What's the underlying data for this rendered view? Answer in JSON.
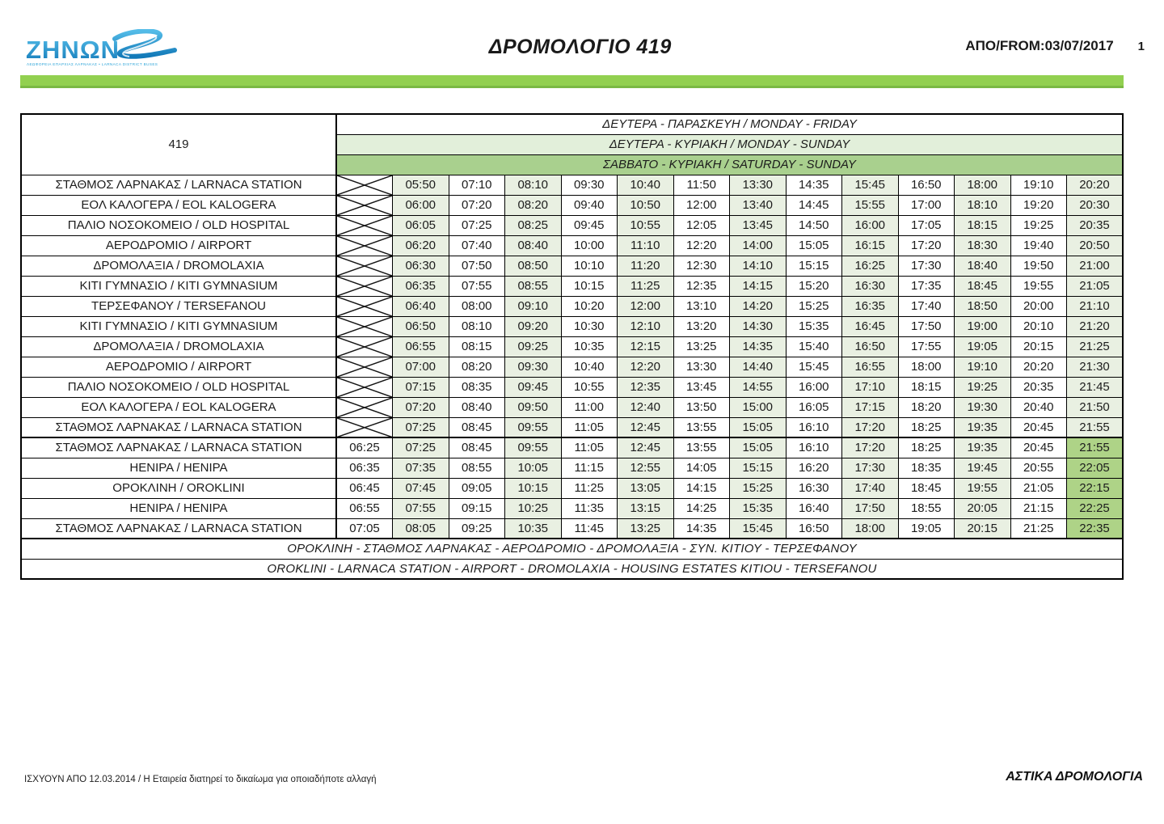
{
  "header": {
    "logo_name": "ΖΗΝΩΝ",
    "logo_tagline": "ΛΕΩΦΟΡΕΙΑ ΕΠΑΡΧΙΑΣ ΛΑΡΝΑΚΑΣ • LARNACA DISTRICT BUSES",
    "title": "ΔΡΟΜΟΛΟΓΙΟ 419",
    "from_label": "ΑΠΟ/FROM:03/07/2017",
    "page_number": "1"
  },
  "colors": {
    "banner_green": "#92d050",
    "header_light_green": "#e2efda",
    "header_medium_green": "#a9d08e",
    "stripe_green": "#e9f0e2",
    "late_column_green": "#aed387",
    "logo_blue": "#2da4d8"
  },
  "timetable": {
    "route_number": "419",
    "day_headers": [
      {
        "label": "ΔΕΥΤΕΡΑ - ΠΑΡΑΣΚΕΥΗ / MONDAY - FRIDAY"
      },
      {
        "label": "ΔΕΥΤΕΡΑ - ΚΥΡΙΑΚΗ / MONDAY - SUNDAY"
      },
      {
        "label": "ΣΑΒΒΑΤΟ - ΚΥΡΙΑΚΗ / SATURDAY - SUNDAY"
      }
    ],
    "rows": [
      {
        "station": "ΣΤΑΘΜΟΣ ΛΑΡΝΑΚΑΣ / LARNACA STATION",
        "block": 1,
        "times": [
          "05:50",
          "07:10",
          "08:10",
          "09:30",
          "10:40",
          "11:50",
          "13:30",
          "14:35",
          "15:45",
          "16:50",
          "18:00",
          "19:10",
          "20:20"
        ]
      },
      {
        "station": "ΕΟΛ ΚΑΛΟΓΕΡΑ / EOL KALOGERA",
        "block": 1,
        "times": [
          "06:00",
          "07:20",
          "08:20",
          "09:40",
          "10:50",
          "12:00",
          "13:40",
          "14:45",
          "15:55",
          "17:00",
          "18:10",
          "19:20",
          "20:30"
        ]
      },
      {
        "station": "ΠΑΛΙΟ ΝΟΣΟΚΟΜΕΙΟ / OLD HOSPITAL",
        "block": 1,
        "times": [
          "06:05",
          "07:25",
          "08:25",
          "09:45",
          "10:55",
          "12:05",
          "13:45",
          "14:50",
          "16:00",
          "17:05",
          "18:15",
          "19:25",
          "20:35"
        ]
      },
      {
        "station": "ΑΕΡΟΔΡΟΜΙΟ / AIRPORT",
        "block": 1,
        "times": [
          "06:20",
          "07:40",
          "08:40",
          "10:00",
          "11:10",
          "12:20",
          "14:00",
          "15:05",
          "16:15",
          "17:20",
          "18:30",
          "19:40",
          "20:50"
        ]
      },
      {
        "station": "ΔΡΟΜΟΛΑΞΙΑ / DROMOLAXIA",
        "block": 1,
        "times": [
          "06:30",
          "07:50",
          "08:50",
          "10:10",
          "11:20",
          "12:30",
          "14:10",
          "15:15",
          "16:25",
          "17:30",
          "18:40",
          "19:50",
          "21:00"
        ]
      },
      {
        "station": "ΚΙΤΙ ΓΥΜΝΑΣΙΟ / KITI GYMNASIUM",
        "block": 1,
        "times": [
          "06:35",
          "07:55",
          "08:55",
          "10:15",
          "11:25",
          "12:35",
          "14:15",
          "15:20",
          "16:30",
          "17:35",
          "18:45",
          "19:55",
          "21:05"
        ]
      },
      {
        "station": "ΤΕΡΣΕΦΑΝΟΥ / TERSEFANOU",
        "block": 1,
        "times": [
          "06:40",
          "08:00",
          "09:10",
          "10:20",
          "12:00",
          "13:10",
          "14:20",
          "15:25",
          "16:35",
          "17:40",
          "18:50",
          "20:00",
          "21:10"
        ]
      },
      {
        "station": "ΚΙΤΙ ΓΥΜΝΑΣΙΟ / KITI GYMNASIUM",
        "block": 1,
        "times": [
          "06:50",
          "08:10",
          "09:20",
          "10:30",
          "12:10",
          "13:20",
          "14:30",
          "15:35",
          "16:45",
          "17:50",
          "19:00",
          "20:10",
          "21:20"
        ]
      },
      {
        "station": "ΔΡΟΜΟΛΑΞΙΑ / DROMOLAXIA",
        "block": 1,
        "times": [
          "06:55",
          "08:15",
          "09:25",
          "10:35",
          "12:15",
          "13:25",
          "14:35",
          "15:40",
          "16:50",
          "17:55",
          "19:05",
          "20:15",
          "21:25"
        ]
      },
      {
        "station": "ΑΕΡΟΔΡΟΜΙΟ / AIRPORT",
        "block": 1,
        "times": [
          "07:00",
          "08:20",
          "09:30",
          "10:40",
          "12:20",
          "13:30",
          "14:40",
          "15:45",
          "16:55",
          "18:00",
          "19:10",
          "20:20",
          "21:30"
        ]
      },
      {
        "station": "ΠΑΛΙΟ ΝΟΣΟΚΟΜΕΙΟ / OLD HOSPITAL",
        "block": 1,
        "times": [
          "07:15",
          "08:35",
          "09:45",
          "10:55",
          "12:35",
          "13:45",
          "14:55",
          "16:00",
          "17:10",
          "18:15",
          "19:25",
          "20:35",
          "21:45"
        ]
      },
      {
        "station": "ΕΟΛ ΚΑΛΟΓΕΡΑ / EOL KALOGERA",
        "block": 1,
        "times": [
          "07:20",
          "08:40",
          "09:50",
          "11:00",
          "12:40",
          "13:50",
          "15:00",
          "16:05",
          "17:15",
          "18:20",
          "19:30",
          "20:40",
          "21:50"
        ]
      },
      {
        "station": "ΣΤΑΘΜΟΣ ΛΑΡΝΑΚΑΣ / LARNACA STATION",
        "block": 1,
        "times": [
          "07:25",
          "08:45",
          "09:55",
          "11:05",
          "12:45",
          "13:55",
          "15:05",
          "16:10",
          "17:20",
          "18:25",
          "19:35",
          "20:45",
          "21:55"
        ]
      },
      {
        "station": "ΣΤΑΘΜΟΣ ΛΑΡΝΑΚΑΣ / LARNACA STATION",
        "block": 2,
        "times": [
          "06:25",
          "07:25",
          "08:45",
          "09:55",
          "11:05",
          "12:45",
          "13:55",
          "15:05",
          "16:10",
          "17:20",
          "18:25",
          "19:35",
          "20:45",
          "21:55"
        ]
      },
      {
        "station": "HENIPA / HENIPA",
        "block": 2,
        "times": [
          "06:35",
          "07:35",
          "08:55",
          "10:05",
          "11:15",
          "12:55",
          "14:05",
          "15:15",
          "16:20",
          "17:30",
          "18:35",
          "19:45",
          "20:55",
          "22:05"
        ]
      },
      {
        "station": "ΟΡΟΚΛΙΝΗ / OROKLINI",
        "block": 2,
        "times": [
          "06:45",
          "07:45",
          "09:05",
          "10:15",
          "11:25",
          "13:05",
          "14:15",
          "15:25",
          "16:30",
          "17:40",
          "18:45",
          "19:55",
          "21:05",
          "22:15"
        ]
      },
      {
        "station": "HENIPA / HENIPA",
        "block": 2,
        "times": [
          "06:55",
          "07:55",
          "09:15",
          "10:25",
          "11:35",
          "13:15",
          "14:25",
          "15:35",
          "16:40",
          "17:50",
          "18:55",
          "20:05",
          "21:15",
          "22:25"
        ]
      },
      {
        "station": "ΣΤΑΘΜΟΣ ΛΑΡΝΑΚΑΣ / LARNACA STATION",
        "block": 2,
        "times": [
          "07:05",
          "08:05",
          "09:25",
          "10:35",
          "11:45",
          "13:25",
          "14:35",
          "15:45",
          "16:50",
          "18:00",
          "19:05",
          "20:15",
          "21:25",
          "22:35"
        ]
      }
    ],
    "route_description_gr": "ΟΡΟΚΛΙΝΗ - ΣΤΑΘΜΟΣ ΛΑΡΝΑΚΑΣ - ΑΕΡΟΔΡΟΜΙΟ - ΔΡΟΜΟΛΑΞΙΑ - ΣΥΝ. ΚΙΤΙΟΥ - ΤΕΡΣΕΦΑΝΟΥ",
    "route_description_en": "OROKLINI - LARNACA STATION - AIRPORT - DROMOLAXIA - HOUSING ESTATES KITIOU - TERSEFANOU"
  },
  "footer": {
    "left": "ΙΣΧΥΟΥΝ ΑΠΟ 12.03.2014 / Η Εταιρεία διατηρεί το δικαίωμα για οποιαδήποτε αλλαγή",
    "right": "ΑΣΤΙΚΑ ΔΡΟΜΟΛΟΓΙΑ"
  }
}
